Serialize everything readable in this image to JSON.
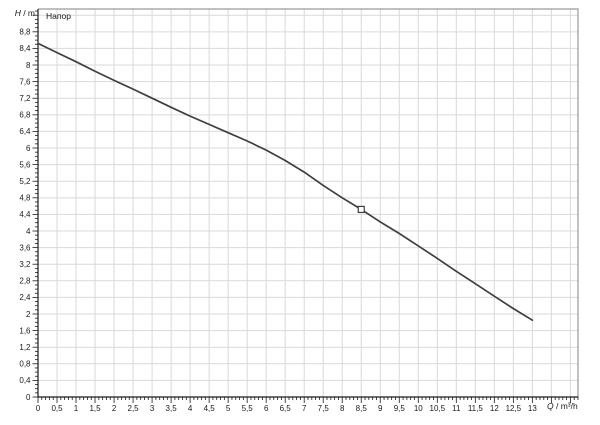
{
  "chart_data": {
    "type": "line",
    "title": "",
    "legend": "Напор",
    "y_axis_title_parts": [
      "H",
      " / m"
    ],
    "x_axis_title_parts": [
      "Q",
      " / m³/h"
    ],
    "xlim": [
      0,
      14.2
    ],
    "ylim": [
      0,
      9.35
    ],
    "x_major_step": 0.5,
    "x_minor_step": 0.1,
    "y_major_step": 0.4,
    "y_minor_step": 0.1,
    "grid": true,
    "legend_position": "top-left-inside",
    "x_tick_values": [
      0,
      0.5,
      1,
      1.5,
      2,
      2.5,
      3,
      3.5,
      4,
      4.5,
      5,
      5.5,
      6,
      6.5,
      7,
      7.5,
      8,
      8.5,
      9,
      9.5,
      10,
      10.5,
      11,
      11.5,
      12,
      12.5,
      13
    ],
    "x_tick_labels": [
      "0",
      "0,5",
      "1",
      "1,5",
      "2",
      "2,5",
      "3",
      "3,5",
      "4",
      "4,5",
      "5",
      "5,5",
      "6",
      "6,5",
      "7",
      "7,5",
      "8",
      "8,5",
      "9",
      "9,5",
      "10",
      "10,5",
      "11",
      "11,5",
      "12",
      "12,5",
      "13"
    ],
    "y_tick_values": [
      0,
      0.4,
      0.8,
      1.2,
      1.6,
      2,
      2.4,
      2.8,
      3.2,
      3.6,
      4,
      4.4,
      4.8,
      5.2,
      5.6,
      6,
      6.4,
      6.8,
      7.2,
      7.6,
      8,
      8.4,
      8.8
    ],
    "y_tick_labels": [
      "0",
      "0,4",
      "0,8",
      "1,2",
      "1,6",
      "2",
      "2,4",
      "2,8",
      "3,2",
      "3,6",
      "4",
      "4,4",
      "4,8",
      "5,2",
      "5,6",
      "6",
      "6,4",
      "6,8",
      "7,2",
      "7,6",
      "8",
      "8,4",
      "8,8"
    ],
    "series": [
      {
        "name": "Напор",
        "x": [
          0,
          0.5,
          1,
          1.5,
          2,
          2.5,
          3,
          3.5,
          4,
          4.5,
          5,
          5.5,
          6,
          6.5,
          7,
          7.5,
          8,
          8.5,
          9,
          9.5,
          10,
          10.5,
          11,
          11.5,
          12,
          12.5,
          13
        ],
        "y": [
          8.52,
          8.3,
          8.08,
          7.85,
          7.63,
          7.42,
          7.2,
          6.98,
          6.77,
          6.57,
          6.37,
          6.17,
          5.95,
          5.7,
          5.42,
          5.1,
          4.8,
          4.52,
          4.22,
          3.94,
          3.64,
          3.34,
          3.03,
          2.73,
          2.43,
          2.13,
          1.85
        ]
      }
    ],
    "marker_point": {
      "x": 8.5,
      "y": 4.52
    },
    "colors": {
      "curve": "#3f3f3f",
      "grid": "#d9d9d9",
      "axis": "#1a1a1a",
      "frame": "#9a9a9a",
      "marker_fill": "#ffffff",
      "text": "#1a1a1a",
      "background": "#ffffff"
    }
  }
}
